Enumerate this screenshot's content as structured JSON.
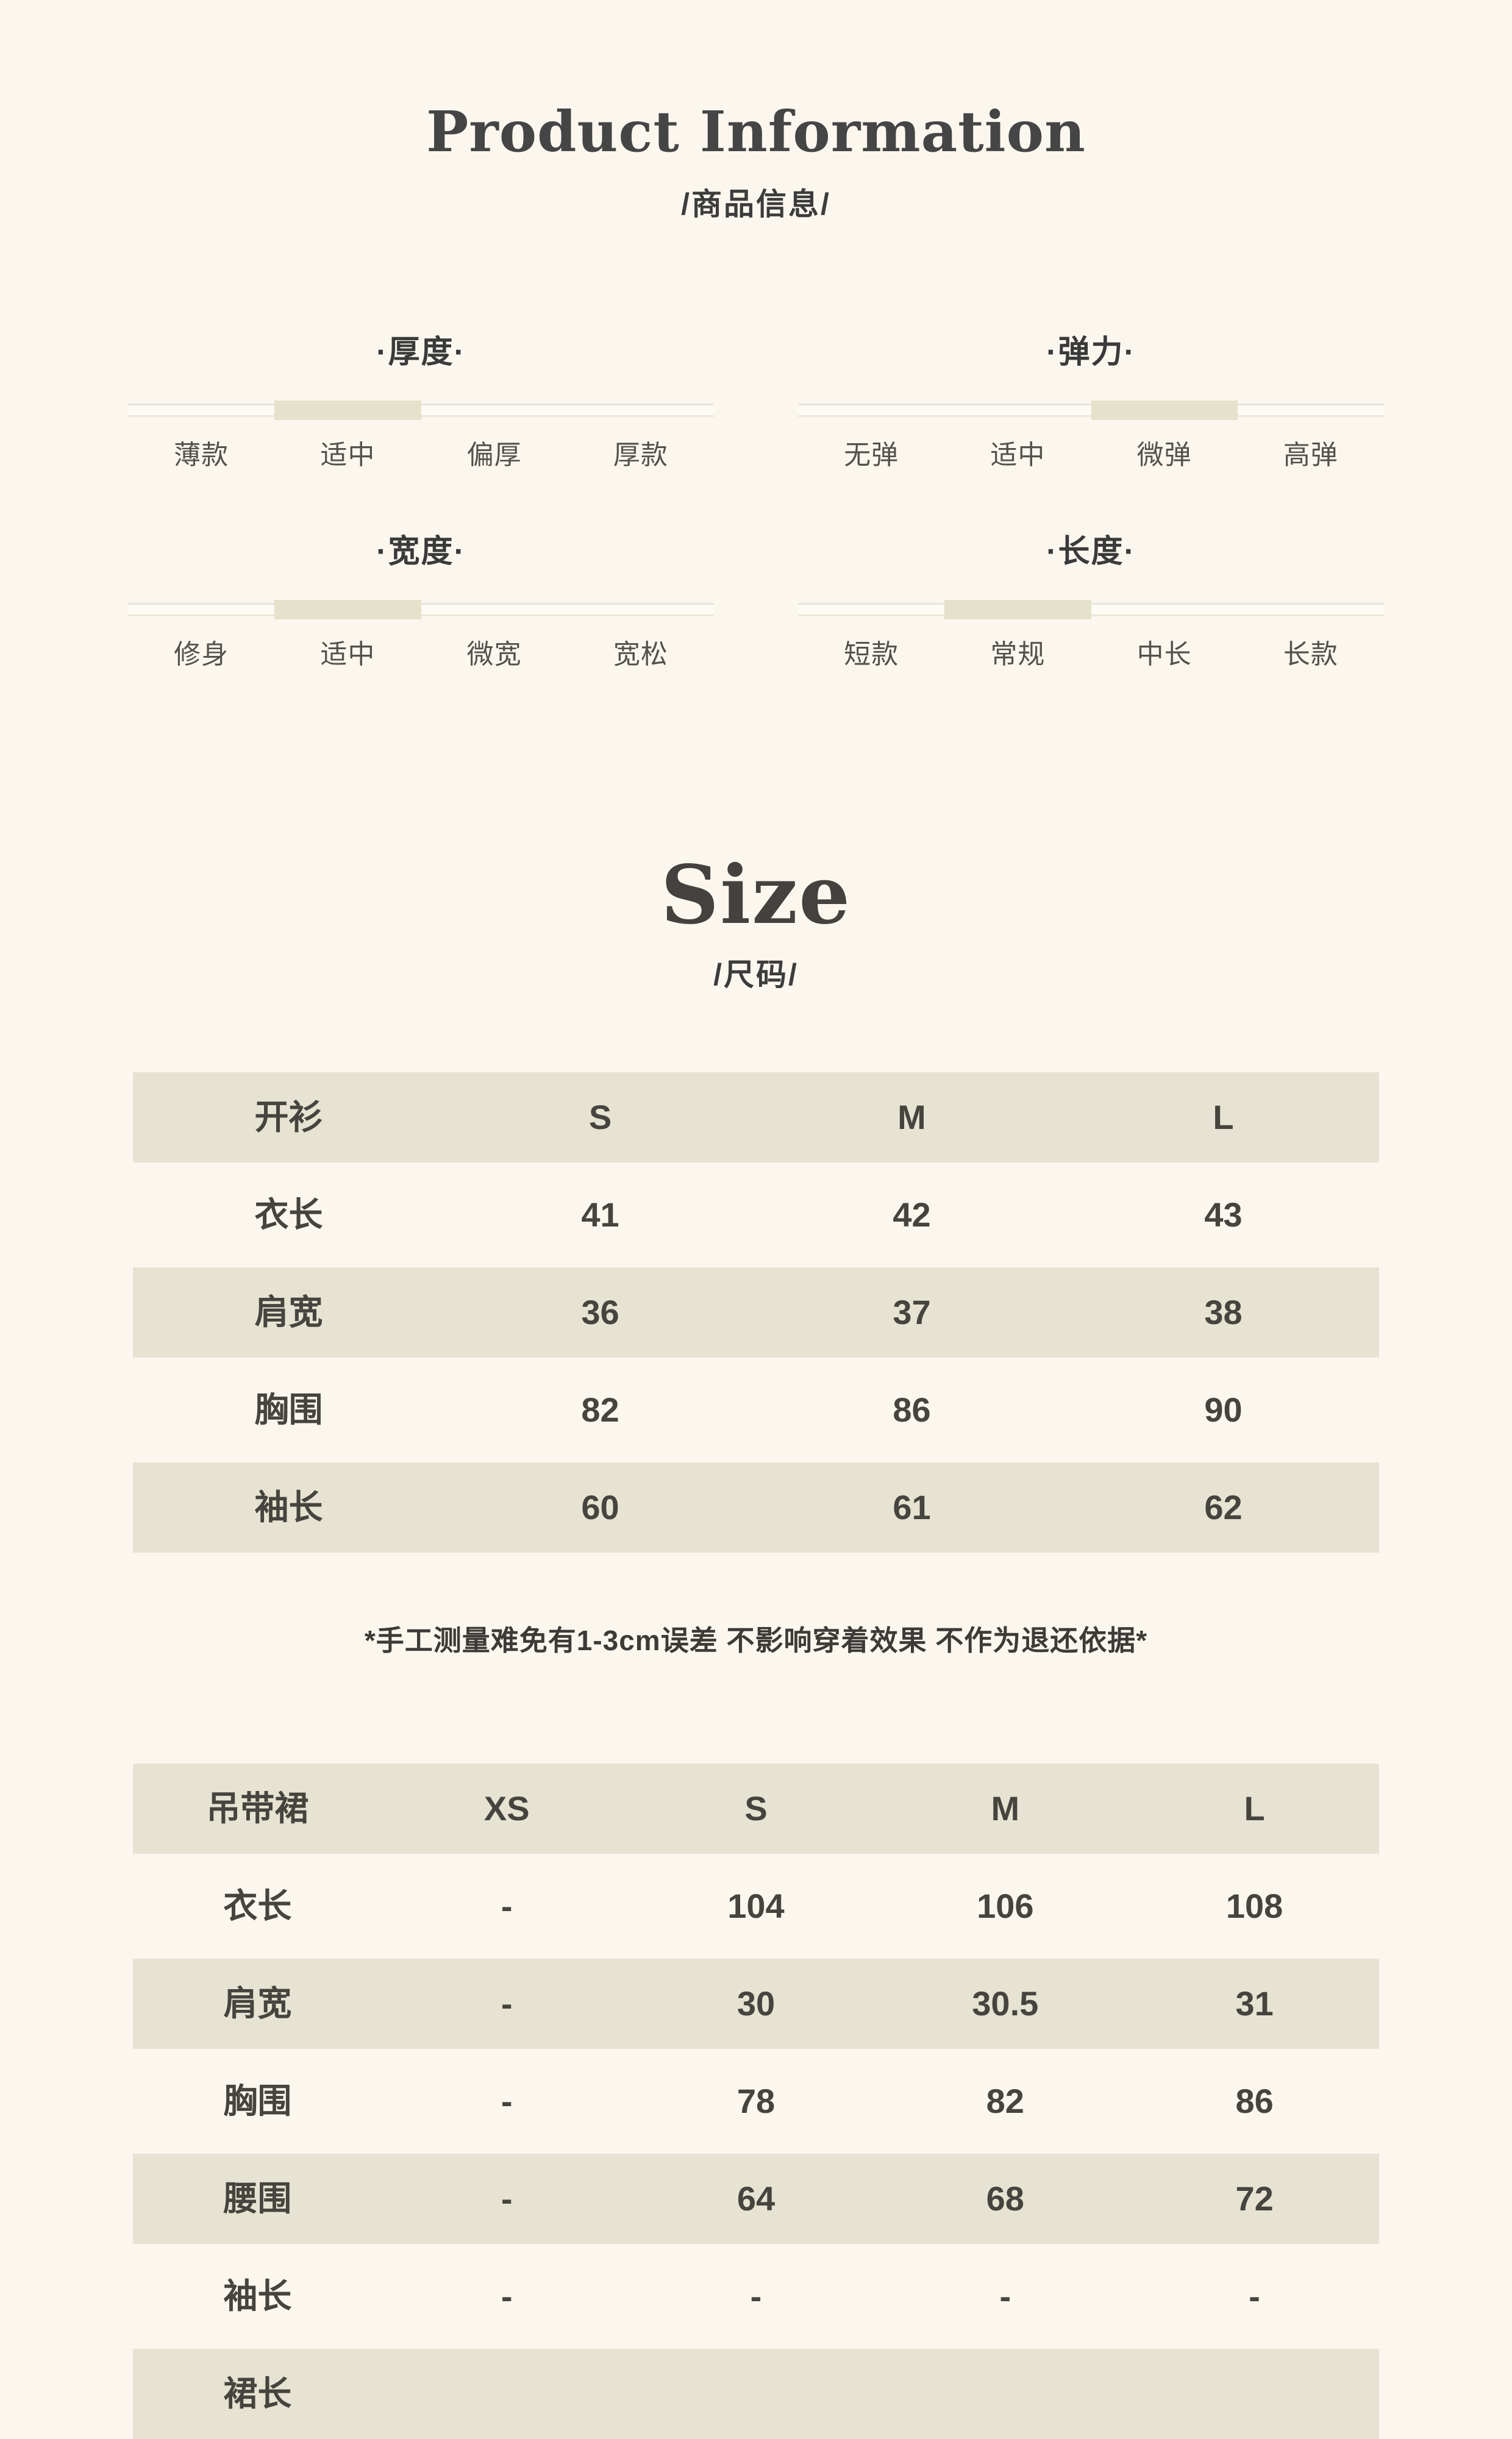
{
  "page": {
    "title": "Product Information",
    "subtitle": "/商品信息/"
  },
  "attributes": {
    "groups": [
      {
        "title": "·厚度·",
        "labels": [
          "薄款",
          "适中",
          "偏厚",
          "厚款"
        ],
        "active_index": 1,
        "active_label": "适中"
      },
      {
        "title": "·弹力·",
        "labels": [
          "无弹",
          "适中",
          "微弹",
          "高弹"
        ],
        "active_index": 2,
        "active_label": "微弹"
      },
      {
        "title": "·宽度·",
        "labels": [
          "修身",
          "适中",
          "微宽",
          "宽松"
        ],
        "active_index": 1,
        "active_label": "适中"
      },
      {
        "title": "·长度·",
        "labels": [
          "短款",
          "常规",
          "中长",
          "长款"
        ],
        "active_index": 1,
        "active_label": "常规"
      }
    ]
  },
  "size_section": {
    "title": "Size",
    "subtitle": "/尺码/",
    "note": "*手工测量难免有1-3cm误差 不影响穿着效果 不作为退还依据*"
  },
  "tables": [
    {
      "name": "cardigan",
      "header": [
        "开衫",
        "S",
        "M",
        "L"
      ],
      "rows": [
        [
          "衣长",
          "41",
          "42",
          "43"
        ],
        [
          "肩宽",
          "36",
          "37",
          "38"
        ],
        [
          "胸围",
          "82",
          "86",
          "90"
        ],
        [
          "袖长",
          "60",
          "61",
          "62"
        ]
      ]
    },
    {
      "name": "slip-dress",
      "header": [
        "吊带裙",
        "XS",
        "S",
        "M",
        "L"
      ],
      "rows": [
        [
          "衣长",
          "-",
          "104",
          "106",
          "108"
        ],
        [
          "肩宽",
          "-",
          "30",
          "30.5",
          "31"
        ],
        [
          "胸围",
          "-",
          "78",
          "82",
          "86"
        ],
        [
          "腰围",
          "-",
          "64",
          "68",
          "72"
        ],
        [
          "袖长",
          "-",
          "-",
          "-",
          "-"
        ],
        [
          "裙长",
          "",
          "",
          "",
          ""
        ]
      ]
    }
  ],
  "colors": {
    "background": "#fbf7ef",
    "row_beige": "#e7e3d2",
    "slider_fill": "#e6e1cb",
    "text_dark": "#403e39"
  }
}
